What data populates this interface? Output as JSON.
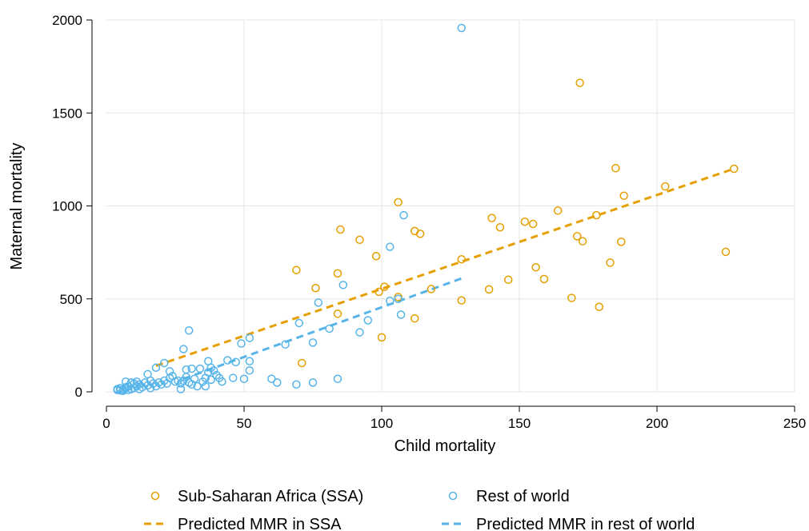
{
  "chart_data": {
    "type": "scatter",
    "xlabel": "Child mortality",
    "ylabel": "Maternal mortality",
    "xlim": [
      0,
      250
    ],
    "ylim": [
      0,
      2000
    ],
    "x_ticks": [
      0,
      50,
      100,
      150,
      200,
      250
    ],
    "y_ticks": [
      0,
      500,
      1000,
      1500,
      2000
    ],
    "grid": true,
    "legend_position": "bottom",
    "colors": {
      "ssa": "#E69F00",
      "row": "#56B4E9"
    },
    "series": [
      {
        "name": "Sub-Saharan Africa (SSA)",
        "kind": "scatter",
        "color": "#E69F00",
        "points": [
          [
            69,
            655
          ],
          [
            71,
            155
          ],
          [
            76,
            558
          ],
          [
            84,
            420
          ],
          [
            84,
            637
          ],
          [
            85,
            873
          ],
          [
            92,
            818
          ],
          [
            98,
            730
          ],
          [
            99,
            538
          ],
          [
            100,
            293
          ],
          [
            101,
            565
          ],
          [
            106,
            510
          ],
          [
            106,
            1020
          ],
          [
            112,
            395
          ],
          [
            112,
            865
          ],
          [
            114,
            850
          ],
          [
            118,
            553
          ],
          [
            129,
            713
          ],
          [
            129,
            492
          ],
          [
            139,
            551
          ],
          [
            140,
            935
          ],
          [
            143,
            885
          ],
          [
            146,
            603
          ],
          [
            152,
            915
          ],
          [
            155,
            903
          ],
          [
            156,
            670
          ],
          [
            159,
            607
          ],
          [
            164,
            975
          ],
          [
            169,
            505
          ],
          [
            171,
            837
          ],
          [
            172,
            1662
          ],
          [
            173,
            810
          ],
          [
            178,
            950
          ],
          [
            179,
            457
          ],
          [
            183,
            695
          ],
          [
            185,
            1203
          ],
          [
            187,
            807
          ],
          [
            188,
            1055
          ],
          [
            203,
            1105
          ],
          [
            225,
            753
          ],
          [
            228,
            1200
          ]
        ]
      },
      {
        "name": "Rest of world",
        "kind": "scatter",
        "color": "#56B4E9",
        "points": [
          [
            4,
            10
          ],
          [
            4,
            15
          ],
          [
            5,
            8
          ],
          [
            5,
            20
          ],
          [
            6,
            12
          ],
          [
            6,
            5
          ],
          [
            7,
            18
          ],
          [
            7,
            25
          ],
          [
            7,
            55
          ],
          [
            8,
            10
          ],
          [
            8,
            30
          ],
          [
            9,
            15
          ],
          [
            9,
            50
          ],
          [
            10,
            20
          ],
          [
            10,
            45
          ],
          [
            11,
            30
          ],
          [
            11,
            55
          ],
          [
            12,
            15
          ],
          [
            12,
            40
          ],
          [
            13,
            25
          ],
          [
            14,
            50
          ],
          [
            15,
            35
          ],
          [
            15,
            95
          ],
          [
            16,
            60
          ],
          [
            16,
            20
          ],
          [
            17,
            45
          ],
          [
            18,
            30
          ],
          [
            18,
            130
          ],
          [
            19,
            50
          ],
          [
            20,
            40
          ],
          [
            21,
            155
          ],
          [
            21,
            60
          ],
          [
            22,
            45
          ],
          [
            23,
            75
          ],
          [
            23,
            110
          ],
          [
            24,
            85
          ],
          [
            25,
            55
          ],
          [
            26,
            60
          ],
          [
            27,
            45
          ],
          [
            27,
            15
          ],
          [
            28,
            230
          ],
          [
            28,
            60
          ],
          [
            29,
            120
          ],
          [
            29,
            80
          ],
          [
            30,
            50
          ],
          [
            30,
            330
          ],
          [
            31,
            40
          ],
          [
            31,
            125
          ],
          [
            32,
            70
          ],
          [
            33,
            30
          ],
          [
            34,
            125
          ],
          [
            35,
            55
          ],
          [
            36,
            75
          ],
          [
            36,
            30
          ],
          [
            37,
            165
          ],
          [
            37,
            105
          ],
          [
            38,
            130
          ],
          [
            38,
            65
          ],
          [
            39,
            115
          ],
          [
            40,
            90
          ],
          [
            41,
            75
          ],
          [
            42,
            55
          ],
          [
            44,
            170
          ],
          [
            46,
            75
          ],
          [
            47,
            160
          ],
          [
            49,
            260
          ],
          [
            50,
            70
          ],
          [
            52,
            115
          ],
          [
            52,
            165
          ],
          [
            52,
            290
          ],
          [
            60,
            70
          ],
          [
            62,
            50
          ],
          [
            65,
            255
          ],
          [
            69,
            40
          ],
          [
            70,
            370
          ],
          [
            75,
            50
          ],
          [
            75,
            265
          ],
          [
            77,
            480
          ],
          [
            81,
            340
          ],
          [
            84,
            70
          ],
          [
            86,
            575
          ],
          [
            92,
            320
          ],
          [
            95,
            385
          ],
          [
            103,
            490
          ],
          [
            103,
            780
          ],
          [
            106,
            500
          ],
          [
            107,
            415
          ],
          [
            108,
            950
          ],
          [
            129,
            1957
          ]
        ]
      },
      {
        "name": "Predicted MMR in SSA",
        "kind": "line",
        "style": "dashed",
        "color": "#E69F00",
        "points": [
          [
            18,
            140
          ],
          [
            228,
            1200
          ]
        ]
      },
      {
        "name": "Predicted MMR in rest of world",
        "kind": "line",
        "style": "dashed",
        "color": "#56B4E9",
        "points": [
          [
            28,
            70
          ],
          [
            129,
            610
          ]
        ]
      }
    ]
  }
}
